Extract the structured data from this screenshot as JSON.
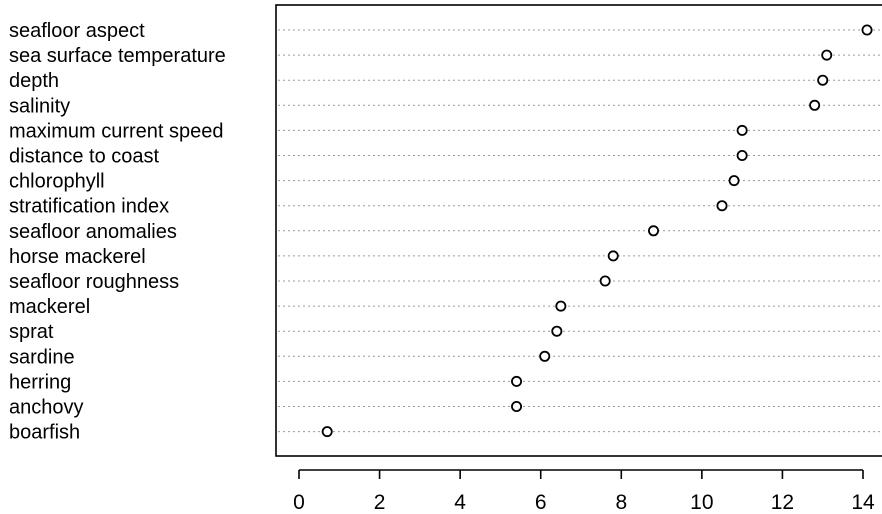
{
  "chart_data": {
    "type": "scatter",
    "title": "",
    "xlabel": "",
    "ylabel": "",
    "xlim": [
      -0.6,
      14.6
    ],
    "xticks": [
      0,
      2,
      4,
      6,
      8,
      10,
      12,
      14
    ],
    "grid": "dotted horizontal lines per category",
    "marker": "open circle",
    "categories": [
      "seafloor aspect",
      "sea surface temperature",
      "depth",
      "salinity",
      "maximum current speed",
      "distance to coast",
      "chlorophyll",
      "stratification index",
      "seafloor anomalies",
      "horse mackerel",
      "seafloor roughness",
      "mackerel",
      "sprat",
      "sardine",
      "herring",
      "anchovy",
      "boarfish"
    ],
    "values": [
      14.1,
      13.1,
      13.0,
      12.8,
      11.0,
      11.0,
      10.8,
      10.5,
      8.8,
      7.8,
      7.6,
      6.5,
      6.4,
      6.1,
      5.4,
      5.4,
      0.7
    ]
  }
}
